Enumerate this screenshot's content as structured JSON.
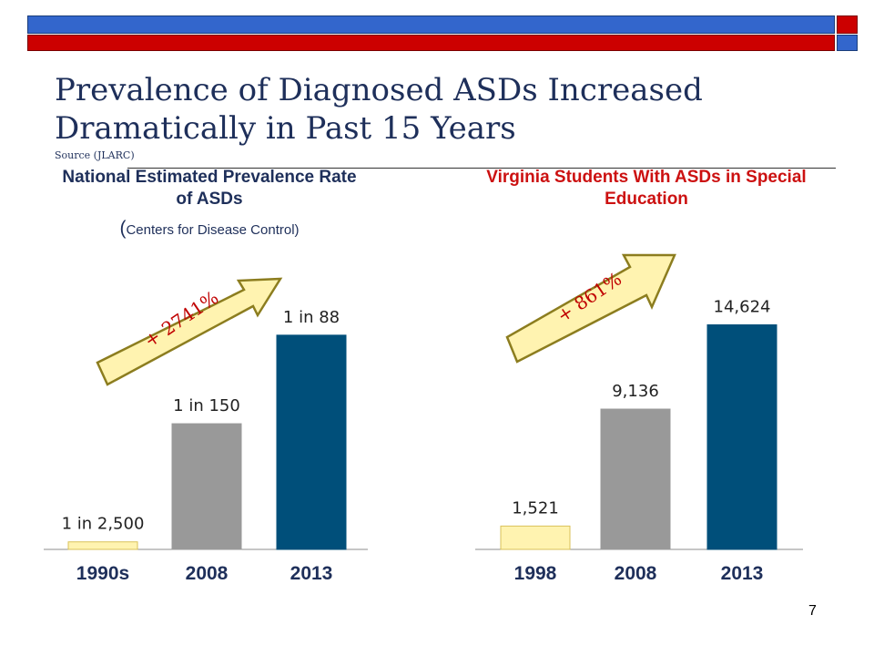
{
  "title": "Prevalence of Diagnosed ASDs Increased Dramatically in Past 15 Years",
  "source": "Source (JLARC)",
  "slide_number": "7",
  "colors": {
    "bar_1": "#fff3b0",
    "bar_2": "#999999",
    "bar_3": "#004f7a",
    "arrow_fill": "#fff3b0",
    "arrow_stroke": "#8c7d1f",
    "growth_text": "#c00000"
  },
  "chart_data": [
    {
      "type": "bar",
      "title": "National Estimated Prevalence Rate of ASDs",
      "subtitle_paren_open": "(",
      "subtitle": "Centers for Disease Control)",
      "categories": [
        "1990s",
        "2008",
        "2013"
      ],
      "values": [
        0.0004,
        0.006667,
        0.011364
      ],
      "data_labels": [
        "1 in 2,500",
        "1 in 150",
        "1 in 88"
      ],
      "growth_annotation": "+ 2741%",
      "ylim": [
        0,
        0.0145
      ]
    },
    {
      "type": "bar",
      "title": "Virginia Students With ASDs in Special Education",
      "categories": [
        "1998",
        "2008",
        "2013"
      ],
      "values": [
        1521,
        9136,
        14624
      ],
      "data_labels": [
        "1,521",
        "9,136",
        "14,624"
      ],
      "growth_annotation": "+ 861%",
      "ylim": [
        0,
        17800
      ]
    }
  ]
}
